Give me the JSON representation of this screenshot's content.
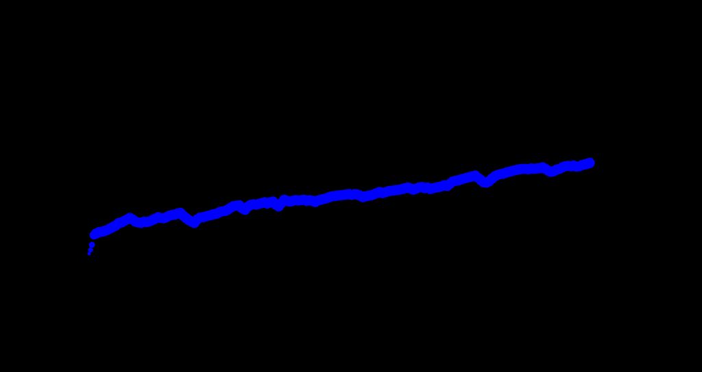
{
  "chart_data": {
    "type": "scatter",
    "title": "",
    "xlabel": "",
    "ylabel": "",
    "xlim": [
      0,
      1
    ],
    "ylim": [
      0,
      1
    ],
    "grid": false,
    "legend": "none",
    "colors": {
      "background": "#000000",
      "marker": "#0000ff"
    },
    "series": [
      {
        "points": [
          [
            0.127,
            0.318
          ],
          [
            0.129,
            0.328
          ],
          [
            0.131,
            0.342
          ],
          [
            0.134,
            0.368
          ],
          [
            0.137,
            0.372
          ],
          [
            0.141,
            0.376
          ],
          [
            0.145,
            0.377
          ],
          [
            0.149,
            0.379
          ],
          [
            0.153,
            0.382
          ],
          [
            0.157,
            0.386
          ],
          [
            0.161,
            0.39
          ],
          [
            0.165,
            0.394
          ],
          [
            0.169,
            0.4
          ],
          [
            0.173,
            0.402
          ],
          [
            0.177,
            0.406
          ],
          [
            0.181,
            0.41
          ],
          [
            0.185,
            0.414
          ],
          [
            0.189,
            0.41
          ],
          [
            0.193,
            0.404
          ],
          [
            0.197,
            0.402
          ],
          [
            0.201,
            0.401
          ],
          [
            0.205,
            0.404
          ],
          [
            0.209,
            0.403
          ],
          [
            0.213,
            0.405
          ],
          [
            0.217,
            0.408
          ],
          [
            0.221,
            0.412
          ],
          [
            0.225,
            0.416
          ],
          [
            0.229,
            0.414
          ],
          [
            0.233,
            0.413
          ],
          [
            0.237,
            0.416
          ],
          [
            0.241,
            0.42
          ],
          [
            0.245,
            0.422
          ],
          [
            0.249,
            0.423
          ],
          [
            0.253,
            0.426
          ],
          [
            0.257,
            0.428
          ],
          [
            0.261,
            0.42
          ],
          [
            0.265,
            0.414
          ],
          [
            0.269,
            0.408
          ],
          [
            0.273,
            0.404
          ],
          [
            0.277,
            0.401
          ],
          [
            0.281,
            0.41
          ],
          [
            0.285,
            0.415
          ],
          [
            0.289,
            0.416
          ],
          [
            0.293,
            0.418
          ],
          [
            0.297,
            0.42
          ],
          [
            0.301,
            0.422
          ],
          [
            0.305,
            0.424
          ],
          [
            0.309,
            0.426
          ],
          [
            0.313,
            0.43
          ],
          [
            0.317,
            0.432
          ],
          [
            0.321,
            0.433
          ],
          [
            0.325,
            0.437
          ],
          [
            0.329,
            0.442
          ],
          [
            0.333,
            0.446
          ],
          [
            0.337,
            0.447
          ],
          [
            0.341,
            0.448
          ],
          [
            0.345,
            0.44
          ],
          [
            0.349,
            0.436
          ],
          [
            0.353,
            0.444
          ],
          [
            0.357,
            0.449
          ],
          [
            0.361,
            0.451
          ],
          [
            0.365,
            0.45
          ],
          [
            0.369,
            0.452
          ],
          [
            0.373,
            0.454
          ],
          [
            0.377,
            0.456
          ],
          [
            0.381,
            0.453
          ],
          [
            0.385,
            0.456
          ],
          [
            0.389,
            0.458
          ],
          [
            0.393,
            0.45
          ],
          [
            0.397,
            0.445
          ],
          [
            0.401,
            0.454
          ],
          [
            0.405,
            0.463
          ],
          [
            0.409,
            0.46
          ],
          [
            0.413,
            0.458
          ],
          [
            0.417,
            0.46
          ],
          [
            0.421,
            0.462
          ],
          [
            0.425,
            0.461
          ],
          [
            0.429,
            0.462
          ],
          [
            0.433,
            0.463
          ],
          [
            0.437,
            0.46
          ],
          [
            0.441,
            0.462
          ],
          [
            0.445,
            0.46
          ],
          [
            0.449,
            0.457
          ],
          [
            0.453,
            0.461
          ],
          [
            0.457,
            0.463
          ],
          [
            0.461,
            0.465
          ],
          [
            0.465,
            0.467
          ],
          [
            0.469,
            0.47
          ],
          [
            0.473,
            0.472
          ],
          [
            0.477,
            0.473
          ],
          [
            0.481,
            0.474
          ],
          [
            0.485,
            0.475
          ],
          [
            0.489,
            0.476
          ],
          [
            0.493,
            0.477
          ],
          [
            0.497,
            0.478
          ],
          [
            0.501,
            0.476
          ],
          [
            0.505,
            0.478
          ],
          [
            0.509,
            0.477
          ],
          [
            0.513,
            0.474
          ],
          [
            0.517,
            0.47
          ],
          [
            0.521,
            0.472
          ],
          [
            0.525,
            0.474
          ],
          [
            0.529,
            0.475
          ],
          [
            0.533,
            0.478
          ],
          [
            0.537,
            0.481
          ],
          [
            0.541,
            0.484
          ],
          [
            0.545,
            0.481
          ],
          [
            0.549,
            0.483
          ],
          [
            0.553,
            0.486
          ],
          [
            0.557,
            0.487
          ],
          [
            0.561,
            0.488
          ],
          [
            0.565,
            0.489
          ],
          [
            0.569,
            0.49
          ],
          [
            0.573,
            0.492
          ],
          [
            0.577,
            0.494
          ],
          [
            0.581,
            0.496
          ],
          [
            0.585,
            0.493
          ],
          [
            0.589,
            0.49
          ],
          [
            0.593,
            0.493
          ],
          [
            0.597,
            0.496
          ],
          [
            0.601,
            0.497
          ],
          [
            0.605,
            0.494
          ],
          [
            0.609,
            0.496
          ],
          [
            0.613,
            0.492
          ],
          [
            0.617,
            0.494
          ],
          [
            0.621,
            0.496
          ],
          [
            0.625,
            0.497
          ],
          [
            0.629,
            0.499
          ],
          [
            0.633,
            0.502
          ],
          [
            0.637,
            0.5
          ],
          [
            0.641,
            0.506
          ],
          [
            0.645,
            0.512
          ],
          [
            0.649,
            0.514
          ],
          [
            0.653,
            0.515
          ],
          [
            0.657,
            0.518
          ],
          [
            0.661,
            0.52
          ],
          [
            0.665,
            0.522
          ],
          [
            0.669,
            0.524
          ],
          [
            0.673,
            0.526
          ],
          [
            0.677,
            0.528
          ],
          [
            0.681,
            0.522
          ],
          [
            0.685,
            0.516
          ],
          [
            0.689,
            0.51
          ],
          [
            0.693,
            0.509
          ],
          [
            0.697,
            0.513
          ],
          [
            0.701,
            0.52
          ],
          [
            0.705,
            0.526
          ],
          [
            0.709,
            0.53
          ],
          [
            0.713,
            0.532
          ],
          [
            0.717,
            0.533
          ],
          [
            0.721,
            0.536
          ],
          [
            0.725,
            0.538
          ],
          [
            0.729,
            0.54
          ],
          [
            0.733,
            0.542
          ],
          [
            0.737,
            0.544
          ],
          [
            0.741,
            0.545
          ],
          [
            0.745,
            0.546
          ],
          [
            0.749,
            0.546
          ],
          [
            0.753,
            0.545
          ],
          [
            0.757,
            0.547
          ],
          [
            0.761,
            0.546
          ],
          [
            0.765,
            0.547
          ],
          [
            0.769,
            0.548
          ],
          [
            0.773,
            0.55
          ],
          [
            0.777,
            0.546
          ],
          [
            0.781,
            0.541
          ],
          [
            0.785,
            0.538
          ],
          [
            0.789,
            0.54
          ],
          [
            0.793,
            0.544
          ],
          [
            0.797,
            0.546
          ],
          [
            0.801,
            0.55
          ],
          [
            0.805,
            0.553
          ],
          [
            0.809,
            0.554
          ],
          [
            0.813,
            0.553
          ],
          [
            0.817,
            0.555
          ],
          [
            0.821,
            0.552
          ],
          [
            0.825,
            0.553
          ],
          [
            0.829,
            0.556
          ],
          [
            0.833,
            0.558
          ],
          [
            0.837,
            0.56
          ],
          [
            0.84,
            0.562
          ]
        ]
      }
    ]
  }
}
